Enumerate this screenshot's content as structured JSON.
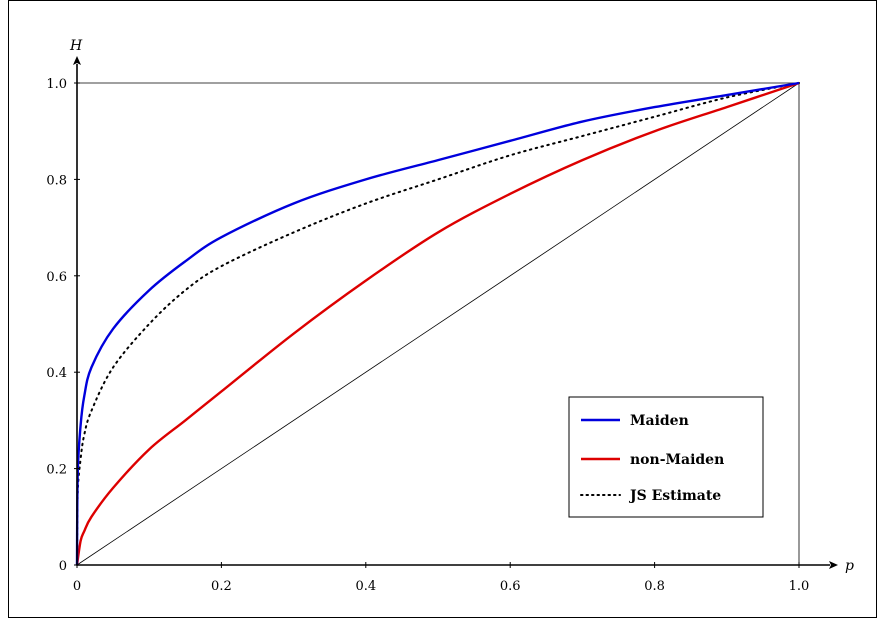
{
  "chart_data": {
    "type": "line",
    "xlabel": "p",
    "ylabel": "H",
    "xlim": [
      0,
      1
    ],
    "ylim": [
      0,
      1
    ],
    "x_ticks": [
      {
        "value": 0,
        "label": "0"
      },
      {
        "value": 0.2,
        "label": "0.2"
      },
      {
        "value": 0.4,
        "label": "0.4"
      },
      {
        "value": 0.6,
        "label": "0.6"
      },
      {
        "value": 0.8,
        "label": "0.8"
      },
      {
        "value": 1.0,
        "label": "1.0"
      }
    ],
    "y_ticks": [
      {
        "value": 0,
        "label": "0"
      },
      {
        "value": 0.2,
        "label": "0.2"
      },
      {
        "value": 0.4,
        "label": "0.4"
      },
      {
        "value": 0.6,
        "label": "0.6"
      },
      {
        "value": 0.8,
        "label": "0.8"
      },
      {
        "value": 1.0,
        "label": "1.0"
      }
    ],
    "grid": false,
    "legend_position": "bottom-right",
    "reference_line": {
      "x": [
        0,
        1
      ],
      "y": [
        0,
        1
      ],
      "color": "#000000"
    },
    "series": [
      {
        "name": "Maiden",
        "color": "#0000dd",
        "style": "solid",
        "x": [
          0,
          0.001,
          0.005,
          0.01,
          0.02,
          0.05,
          0.1,
          0.15,
          0.2,
          0.3,
          0.4,
          0.5,
          0.6,
          0.7,
          0.8,
          0.9,
          1.0
        ],
        "y": [
          0,
          0.19,
          0.29,
          0.35,
          0.41,
          0.49,
          0.57,
          0.63,
          0.68,
          0.75,
          0.8,
          0.84,
          0.88,
          0.92,
          0.95,
          0.975,
          1.0
        ]
      },
      {
        "name": "non-Maiden",
        "color": "#dd0000",
        "style": "solid",
        "x": [
          0,
          0.005,
          0.01,
          0.02,
          0.05,
          0.1,
          0.15,
          0.2,
          0.3,
          0.4,
          0.5,
          0.6,
          0.7,
          0.8,
          0.9,
          1.0
        ],
        "y": [
          0,
          0.05,
          0.07,
          0.1,
          0.16,
          0.24,
          0.3,
          0.36,
          0.48,
          0.59,
          0.69,
          0.77,
          0.84,
          0.9,
          0.95,
          1.0
        ]
      },
      {
        "name": "JS Estimate",
        "color": "#000000",
        "style": "dotted",
        "x": [
          0,
          0.001,
          0.005,
          0.01,
          0.02,
          0.05,
          0.1,
          0.15,
          0.2,
          0.3,
          0.4,
          0.5,
          0.6,
          0.7,
          0.8,
          0.9,
          1.0
        ],
        "y": [
          0,
          0.15,
          0.22,
          0.27,
          0.32,
          0.41,
          0.5,
          0.57,
          0.62,
          0.69,
          0.75,
          0.8,
          0.85,
          0.89,
          0.93,
          0.97,
          1.0
        ]
      }
    ]
  }
}
